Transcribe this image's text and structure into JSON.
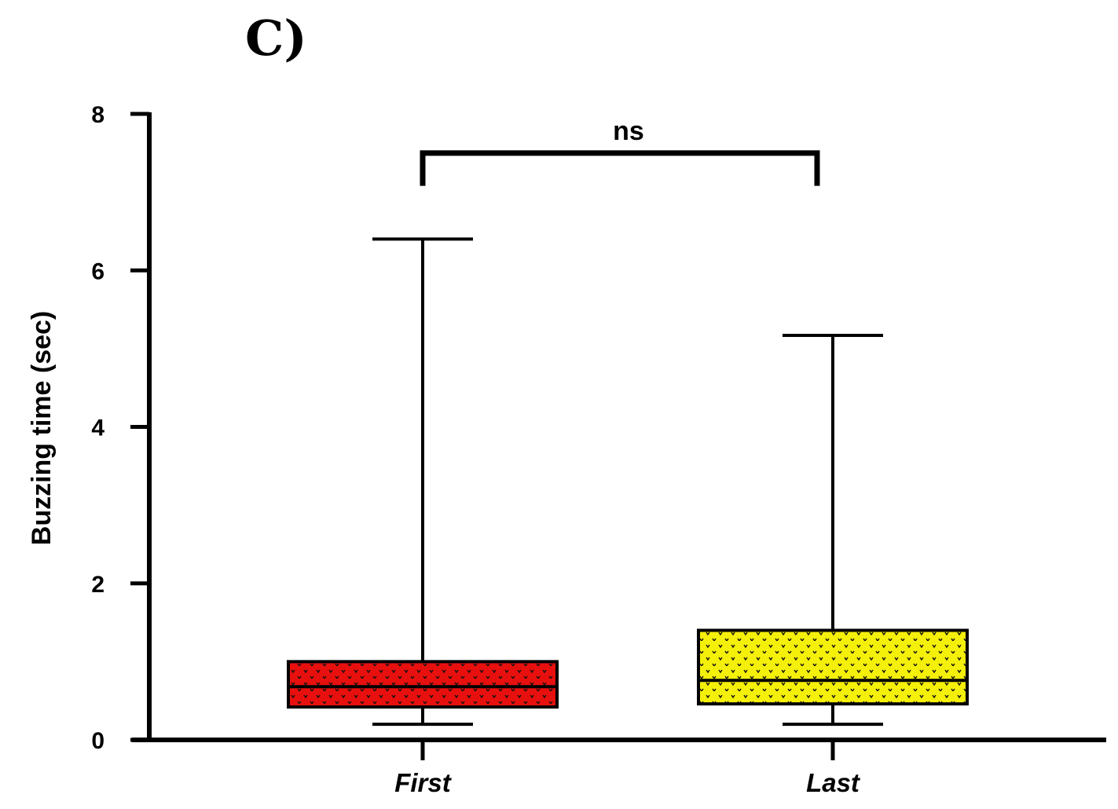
{
  "chart_data": {
    "type": "box",
    "panel_label": "C)",
    "ylabel": "Buzzing time (sec)",
    "xlabel": "",
    "ylim": [
      0,
      8
    ],
    "yticks": [
      0,
      2,
      4,
      6,
      8
    ],
    "grid": false,
    "categories": [
      "First",
      "Last"
    ],
    "boxes": [
      {
        "category": "First",
        "min": 0.2,
        "q1": 0.42,
        "median": 0.68,
        "q3": 1.0,
        "max": 6.4,
        "color": "#e8100e",
        "pattern": "dotted"
      },
      {
        "category": "Last",
        "min": 0.2,
        "q1": 0.46,
        "median": 0.76,
        "q3": 1.4,
        "max": 5.17,
        "color": "#f5f00a",
        "pattern": "dotted"
      }
    ],
    "significance": {
      "between": [
        "First",
        "Last"
      ],
      "label": "ns",
      "y": 7.5
    }
  }
}
